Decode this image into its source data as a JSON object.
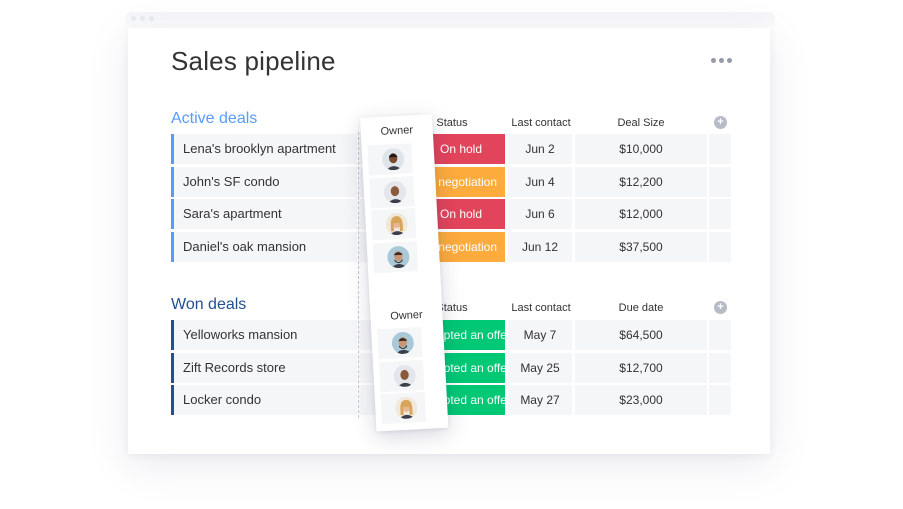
{
  "board": {
    "title": "Sales pipeline",
    "more_icon": "more-horizontal-icon"
  },
  "colors": {
    "active_accent": "#579bfc",
    "won_accent": "#225091",
    "on_hold": "#e2445c",
    "negotiation": "#fdab3d",
    "accepted": "#00c875"
  },
  "active": {
    "title": "Active deals",
    "headers": {
      "owner": "Owner",
      "status": "Status",
      "date": "Last contact",
      "money": "Deal Size"
    },
    "rows": [
      {
        "name": "Lena's brooklyn apartment",
        "status": "On hold",
        "status_color": "#e2445c",
        "date": "Jun 2",
        "money": "$10,000",
        "avatar": "man-dark-avatar"
      },
      {
        "name": "John's SF condo",
        "status": "In negotiation",
        "status_color": "#fdab3d",
        "date": "Jun 4",
        "money": "$12,200",
        "avatar": "man-bald-avatar"
      },
      {
        "name": "Sara's apartment",
        "status": "On hold",
        "status_color": "#e2445c",
        "date": "Jun 6",
        "money": "$12,000",
        "avatar": "woman-blonde-avatar"
      },
      {
        "name": "Daniel's oak mansion",
        "status": "In negotiation",
        "status_color": "#fdab3d",
        "date": "Jun 12",
        "money": "$37,500",
        "avatar": "man-beard-avatar"
      }
    ]
  },
  "won": {
    "title": "Won deals",
    "headers": {
      "owner": "Owner",
      "status": "Status",
      "date": "Last contact",
      "money": "Due date"
    },
    "rows": [
      {
        "name": "Yelloworks mansion",
        "status": "Accepted an offer",
        "status_color": "#00c875",
        "date": "May 7",
        "money": "$64,500",
        "avatar": "man-beard-avatar"
      },
      {
        "name": "Zift Records store",
        "status": "Accepted an offer",
        "status_color": "#00c875",
        "date": "May 25",
        "money": "$12,700",
        "avatar": "man-bald-avatar"
      },
      {
        "name": "Locker condo",
        "status": "Accepted an offer",
        "status_color": "#00c875",
        "date": "May 27",
        "money": "$23,000",
        "avatar": "woman-blonde-avatar"
      }
    ]
  }
}
